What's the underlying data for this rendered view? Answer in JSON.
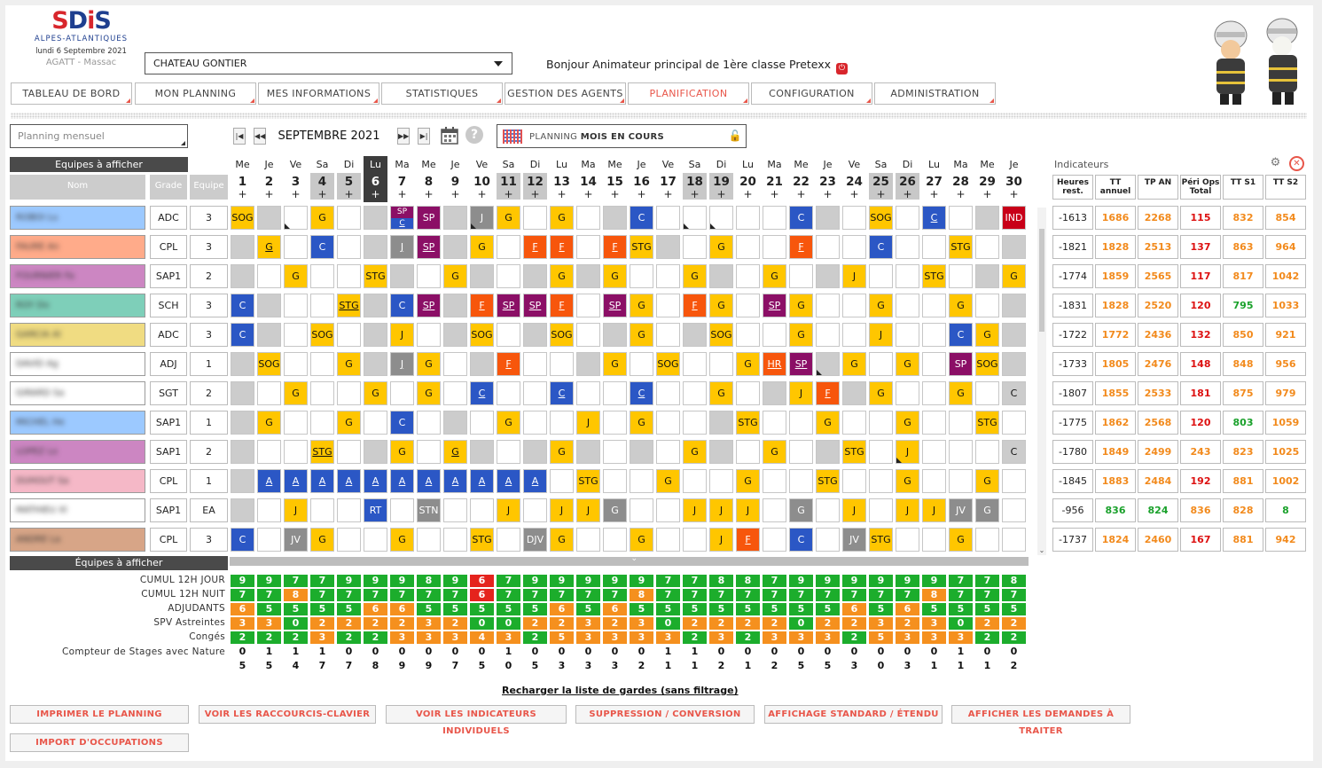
{
  "header": {
    "logo_text": "SDIS",
    "logo_sub": "ALPES-ATLANTIQUES",
    "date": "lundi 6 Septembre 2021",
    "org": "AGATT - Massac",
    "center": "CHATEAU GONTIER",
    "greeting": "Bonjour Animateur principal de 1ère classe Pretexx"
  },
  "nav": [
    "TABLEAU DE BORD",
    "MON PLANNING",
    "MES INFORMATIONS",
    "STATISTIQUES",
    "GESTION DES AGENTS",
    "PLANIFICATION",
    "CONFIGURATION",
    "ADMINISTRATION"
  ],
  "nav_active": 5,
  "toolbar": {
    "mode_placeholder": "Planning mensuel",
    "month": "SEPTEMBRE 2021",
    "plan_mode_prefix": "PLANNING",
    "plan_mode_bold": "MOIS EN COURS",
    "nav_prev2": "◀",
    "nav_prev": "◀◀",
    "nav_next": "▶▶",
    "nav_next2": "▶",
    "help": "?"
  },
  "grid": {
    "teams_label": "Equipes à afficher",
    "teams_label2": "Équipes à afficher",
    "col_nom": "Nom",
    "col_grade": "Grade",
    "col_equipe": "Equipe",
    "plus": "+"
  },
  "days": [
    {
      "n": "1",
      "d": "Me"
    },
    {
      "n": "2",
      "d": "Je"
    },
    {
      "n": "3",
      "d": "Ve"
    },
    {
      "n": "4",
      "d": "Sa"
    },
    {
      "n": "5",
      "d": "Di"
    },
    {
      "n": "6",
      "d": "Lu"
    },
    {
      "n": "7",
      "d": "Ma"
    },
    {
      "n": "8",
      "d": "Me"
    },
    {
      "n": "9",
      "d": "Je"
    },
    {
      "n": "10",
      "d": "Ve"
    },
    {
      "n": "11",
      "d": "Sa"
    },
    {
      "n": "12",
      "d": "Di"
    },
    {
      "n": "13",
      "d": "Lu"
    },
    {
      "n": "14",
      "d": "Ma"
    },
    {
      "n": "15",
      "d": "Me"
    },
    {
      "n": "16",
      "d": "Je"
    },
    {
      "n": "17",
      "d": "Ve"
    },
    {
      "n": "18",
      "d": "Sa"
    },
    {
      "n": "19",
      "d": "Di"
    },
    {
      "n": "20",
      "d": "Lu"
    },
    {
      "n": "21",
      "d": "Ma"
    },
    {
      "n": "22",
      "d": "Me"
    },
    {
      "n": "23",
      "d": "Je"
    },
    {
      "n": "24",
      "d": "Ve"
    },
    {
      "n": "25",
      "d": "Sa"
    },
    {
      "n": "26",
      "d": "Di"
    },
    {
      "n": "27",
      "d": "Lu"
    },
    {
      "n": "28",
      "d": "Ma"
    },
    {
      "n": "29",
      "d": "Me"
    },
    {
      "n": "30",
      "d": "Je"
    }
  ],
  "agents": [
    {
      "name": "ROBOI Lu",
      "color": "#9cc9ff",
      "grade": "ADC",
      "team": "3",
      "cells": [
        "g:SOG",
        "gr",
        "w:~",
        "g:G",
        "w",
        "gr",
        "spc",
        "p:SP",
        "gr",
        "dg:J~",
        "g:G",
        "w",
        "g:G",
        "w",
        "gr",
        "b:C",
        "w",
        "w:~",
        "w:~",
        "w",
        "w",
        "b:C",
        "gr",
        "w",
        "g:SOG",
        "w",
        "b:_C",
        "w",
        "gr",
        "r:IND"
      ]
    },
    {
      "name": "FAURE An",
      "color": "#ffab8a",
      "grade": "CPL",
      "team": "3",
      "cells": [
        "gr",
        "g:_G",
        "w",
        "b:C",
        "w",
        "gr",
        "dg:_J",
        "p:_SP",
        "gr",
        "g:G",
        "w",
        "o:_F",
        "o:_F",
        "w",
        "o:_F",
        "g:STG",
        "gr",
        "w",
        "g:G",
        "w",
        "w",
        "o:_F",
        "w",
        "w",
        "b:C",
        "w",
        "w",
        "g:STG",
        "w",
        "gr"
      ]
    },
    {
      "name": "FOURNIER Fa",
      "color": "#cc86c2",
      "grade": "SAP1",
      "team": "2",
      "cells": [
        "gr",
        "w",
        "g:G",
        "w",
        "w",
        "g:STG",
        "gr",
        "w",
        "g:G",
        "gr",
        "w",
        "gr",
        "g:G",
        "gr",
        "g:G",
        "w",
        "w",
        "g:G",
        "gr",
        "w",
        "g:G",
        "w",
        "gr",
        "g:J",
        "w",
        "w",
        "g:STG",
        "w",
        "gr",
        "g:G"
      ]
    },
    {
      "name": "ROY Do",
      "color": "#7ecfb9",
      "grade": "SCH",
      "team": "3",
      "cells": [
        "b:C",
        "gr",
        "w",
        "w",
        "g:_STG",
        "gr",
        "b:C",
        "p:_SP",
        "gr",
        "o:_F",
        "p:_SP",
        "p:_SP",
        "o:_F",
        "w",
        "p:_SP",
        "g:G",
        "w",
        "o:_F",
        "g:G",
        "w",
        "p:_SP",
        "g:G",
        "w",
        "w",
        "g:G",
        "w",
        "w",
        "g:G",
        "w",
        "gr"
      ]
    },
    {
      "name": "GARCIA Al",
      "color": "#f0dc82",
      "grade": "ADC",
      "team": "3",
      "cells": [
        "b:C",
        "gr",
        "w",
        "g:SOG",
        "w",
        "gr",
        "g:J",
        "w",
        "gr",
        "g:SOG",
        "w",
        "gr",
        "g:SOG",
        "w",
        "gr",
        "g:G",
        "w",
        "gr",
        "g:SOG",
        "w",
        "w",
        "g:G",
        "w",
        "w",
        "g:J",
        "w",
        "w",
        "b:C",
        "g:G",
        "gr"
      ]
    },
    {
      "name": "DAVID Ag",
      "color": "#ffffff",
      "grade": "ADJ",
      "team": "1",
      "cells": [
        "gr",
        "g:SOG",
        "w",
        "w",
        "g:G",
        "gr",
        "dg:_J",
        "g:G",
        "w",
        "gr",
        "o:_F",
        "w",
        "w",
        "gr",
        "g:G",
        "w",
        "g:SOG",
        "w",
        "w",
        "g:G",
        "o:_HR",
        "p:_SP",
        "gr~",
        "g:G",
        "w",
        "g:G",
        "w",
        "p:SP",
        "g:SOG",
        "gr"
      ]
    },
    {
      "name": "GIRARD Sa",
      "color": "#ffffff",
      "grade": "SGT",
      "team": "2",
      "cells": [
        "gr",
        "w",
        "g:G",
        "w",
        "w",
        "g:G",
        "w",
        "g:G",
        "w",
        "b:_C",
        "w",
        "w",
        "b:_C",
        "w",
        "w",
        "b:_C",
        "w",
        "w",
        "g:G",
        "w",
        "gr",
        "g:J",
        "o:_F",
        "gr",
        "g:G",
        "w",
        "w",
        "g:G",
        "w",
        "gr:C"
      ]
    },
    {
      "name": "MICHEL He",
      "color": "#9cc9ff",
      "grade": "SAP1",
      "team": "1",
      "cells": [
        "gr",
        "g:G",
        "w",
        "w",
        "g:G",
        "w",
        "b:C",
        "w",
        "gr",
        "w",
        "g:G",
        "w",
        "w",
        "g:J",
        "w",
        "g:G",
        "w",
        "w",
        "gr",
        "g:STG",
        "w",
        "w",
        "g:G",
        "w",
        "w",
        "g:G",
        "w",
        "w",
        "g:STG",
        "w"
      ]
    },
    {
      "name": "LOPEZ Lo",
      "color": "#cc86c2",
      "grade": "SAP1",
      "team": "2",
      "cells": [
        "gr",
        "w",
        "w",
        "g:_STG",
        "w",
        "gr",
        "g:G",
        "w",
        "g:_G",
        "gr",
        "w",
        "gr",
        "g:G",
        "gr",
        "w",
        "gr",
        "w",
        "g:G",
        "gr",
        "w",
        "g:G",
        "w",
        "gr",
        "g:STG",
        "w",
        "g:J~",
        "w",
        "w",
        "w",
        "gr:C"
      ]
    },
    {
      "name": "DUHOUT Sa",
      "color": "#f5b8c7",
      "grade": "CPL",
      "team": "1",
      "cells": [
        "gr",
        "b:_A",
        "b:_A",
        "b:_A",
        "b:_A",
        "b:_A",
        "b:_A",
        "b:_A",
        "b:_A",
        "b:_A",
        "b:_A",
        "b:_A",
        "w",
        "g:STG",
        "w",
        "w",
        "g:G",
        "w",
        "w",
        "g:G",
        "w",
        "w",
        "g:STG",
        "w",
        "w",
        "g:G",
        "w",
        "w",
        "g:G",
        "w"
      ]
    },
    {
      "name": "MATHIEU Xl",
      "color": "#ffffff",
      "grade": "SAP1",
      "team": "EA",
      "cells": [
        "gr",
        "w",
        "g:J",
        "w",
        "w",
        "b:RT",
        "w",
        "dg:STN",
        "w",
        "w",
        "g:J",
        "w",
        "g:J",
        "g:J",
        "dg:G",
        "w",
        "w",
        "g:J",
        "g:J",
        "g:J",
        "w",
        "dg:G",
        "w",
        "g:J",
        "w",
        "g:J",
        "g:J",
        "dg:JV",
        "dg:G",
        "w"
      ]
    },
    {
      "name": "ANDRE La",
      "color": "#d7a587",
      "grade": "CPL",
      "team": "3",
      "cells": [
        "b:C",
        "w",
        "dg:JV",
        "g:G",
        "w",
        "w",
        "g:G",
        "w",
        "w",
        "g:STG",
        "w",
        "dg:DJV",
        "g:G",
        "w",
        "w",
        "g:G",
        "w",
        "w",
        "g:J",
        "o:_F",
        "w",
        "b:C",
        "w",
        "dg:JV",
        "g:STG",
        "w",
        "w",
        "g:G",
        "w",
        "w"
      ]
    }
  ],
  "indicators": {
    "title": "Indicateurs",
    "headers": [
      "Heures rest.",
      "TT annuel",
      "TP AN",
      "Péri Ops Total",
      "TT S1",
      "TT S2"
    ],
    "rows": [
      [
        "-1613",
        "1686",
        "2268",
        "115",
        "832",
        "854"
      ],
      [
        "-1821",
        "1828",
        "2513",
        "137",
        "863",
        "964"
      ],
      [
        "-1774",
        "1859",
        "2565",
        "117",
        "817",
        "1042"
      ],
      [
        "-1831",
        "1828",
        "2520",
        "120",
        "795",
        "1033"
      ],
      [
        "-1722",
        "1772",
        "2436",
        "132",
        "850",
        "921"
      ],
      [
        "-1733",
        "1805",
        "2476",
        "148",
        "848",
        "956"
      ],
      [
        "-1807",
        "1855",
        "2533",
        "181",
        "875",
        "979"
      ],
      [
        "-1775",
        "1862",
        "2568",
        "120",
        "803",
        "1059"
      ],
      [
        "-1780",
        "1849",
        "2499",
        "243",
        "823",
        "1025"
      ],
      [
        "-1845",
        "1883",
        "2484",
        "192",
        "881",
        "1002"
      ],
      [
        "-956",
        "836",
        "824",
        "836",
        "828",
        "8"
      ],
      [
        "-1737",
        "1824",
        "2460",
        "167",
        "881",
        "942"
      ]
    ],
    "colors": [
      [
        "n",
        "o",
        "o",
        "r",
        "o",
        "o"
      ],
      [
        "n",
        "o",
        "o",
        "r",
        "o",
        "o"
      ],
      [
        "n",
        "o",
        "o",
        "r",
        "o",
        "o"
      ],
      [
        "n",
        "o",
        "o",
        "r",
        "g",
        "o"
      ],
      [
        "n",
        "o",
        "o",
        "r",
        "o",
        "o"
      ],
      [
        "n",
        "o",
        "o",
        "r",
        "o",
        "o"
      ],
      [
        "n",
        "o",
        "o",
        "r",
        "o",
        "o"
      ],
      [
        "n",
        "o",
        "o",
        "r",
        "g",
        "o"
      ],
      [
        "n",
        "o",
        "o",
        "o",
        "o",
        "o"
      ],
      [
        "n",
        "o",
        "o",
        "r",
        "o",
        "o"
      ],
      [
        "n",
        "g",
        "g",
        "o",
        "o",
        "g"
      ],
      [
        "n",
        "o",
        "o",
        "r",
        "o",
        "o"
      ]
    ]
  },
  "counters": [
    {
      "label": "CUMUL 12H JOUR",
      "values": [
        "9",
        "9",
        "7",
        "7",
        "9",
        "9",
        "9",
        "8",
        "9",
        "6",
        "7",
        "9",
        "9",
        "9",
        "9",
        "9",
        "7",
        "7",
        "8",
        "8",
        "7",
        "9",
        "9",
        "9",
        "9",
        "9",
        "9",
        "7",
        "7",
        "8"
      ],
      "colors": "GGGGGGGGGRGGGGGGGGGGGGGGGGGGGG"
    },
    {
      "label": "CUMUL 12H NUIT",
      "values": [
        "7",
        "7",
        "8",
        "7",
        "7",
        "7",
        "7",
        "7",
        "7",
        "6",
        "7",
        "7",
        "7",
        "7",
        "7",
        "8",
        "7",
        "7",
        "7",
        "7",
        "7",
        "7",
        "7",
        "7",
        "7",
        "7",
        "8",
        "7",
        "7",
        "7"
      ],
      "colors": "GGOGGGGGGRGGGGGOGGGGGGGGGGOGGG"
    },
    {
      "label": "ADJUDANTS",
      "values": [
        "6",
        "5",
        "5",
        "5",
        "5",
        "6",
        "6",
        "5",
        "5",
        "5",
        "5",
        "5",
        "6",
        "5",
        "6",
        "5",
        "5",
        "5",
        "5",
        "5",
        "5",
        "5",
        "5",
        "6",
        "5",
        "6",
        "5",
        "5",
        "5",
        "5"
      ],
      "colors": "OGGGGOOGGGGGOGOGGGGGGGGOGOGGGG"
    },
    {
      "label": "SPV Astreintes",
      "values": [
        "3",
        "3",
        "0",
        "2",
        "2",
        "2",
        "2",
        "3",
        "2",
        "0",
        "0",
        "2",
        "2",
        "3",
        "2",
        "3",
        "0",
        "2",
        "2",
        "2",
        "2",
        "0",
        "2",
        "2",
        "3",
        "2",
        "3",
        "0",
        "2",
        "2"
      ],
      "colors": "OOGOOOOOOGGOOOOOGOOOOGOOOOOGOO"
    },
    {
      "label": "Congés",
      "values": [
        "2",
        "2",
        "2",
        "3",
        "2",
        "2",
        "3",
        "3",
        "3",
        "4",
        "3",
        "2",
        "5",
        "3",
        "3",
        "3",
        "3",
        "2",
        "3",
        "2",
        "3",
        "3",
        "3",
        "2",
        "5",
        "3",
        "3",
        "3",
        "2",
        "2"
      ],
      "colors": "GGGOGGOOOOOGOOOOOGOGOOOGOOOOGG"
    }
  ],
  "stages": {
    "label": "Compteur de Stages avec Nature",
    "top": [
      "0",
      "1",
      "1",
      "1",
      "0",
      "0",
      "0",
      "0",
      "0",
      "0",
      "1",
      "0",
      "0",
      "0",
      "0",
      "0",
      "1",
      "1",
      "0",
      "0",
      "0",
      "0",
      "0",
      "0",
      "0",
      "0",
      "0",
      "1",
      "0",
      "0"
    ],
    "bottom": [
      "5",
      "5",
      "4",
      "7",
      "7",
      "8",
      "9",
      "9",
      "7",
      "5",
      "0",
      "5",
      "3",
      "3",
      "3",
      "2",
      "1",
      "1",
      "2",
      "1",
      "2",
      "5",
      "5",
      "3",
      "0",
      "3",
      "1",
      "1",
      "1",
      "2"
    ]
  },
  "reload": "Recharger la liste de gardes (sans filtrage)",
  "buttons": [
    "IMPRIMER LE PLANNING",
    "VOIR LES RACCOURCIS-CLAVIER",
    "VOIR LES INDICATEURS INDIVIDUELS",
    "SUPPRESSION / CONVERSION",
    "AFFICHAGE STANDARD / ÉTENDU",
    "AFFICHER LES DEMANDES À TRAITER",
    "IMPORT D'OCCUPATIONS"
  ]
}
